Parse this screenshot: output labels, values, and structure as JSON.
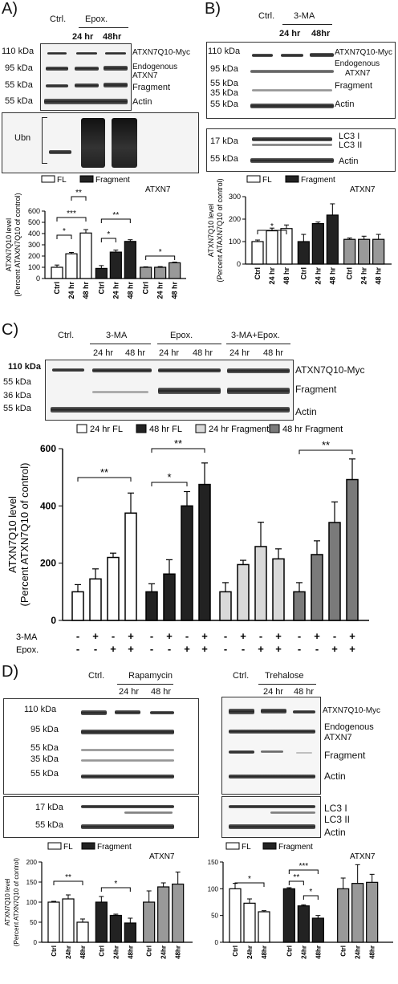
{
  "panels": {
    "A": {
      "letter": "A)",
      "header": {
        "ctrl": "Ctrl.",
        "group": "Epox.",
        "t1": "24 hr",
        "t2": "48hr"
      },
      "markers": [
        "110 kDa",
        "95 kDa",
        "55 kDa",
        "55 kDa"
      ],
      "labels": [
        "ATXN7Q10-Myc",
        "Endogenous",
        "ATXN7",
        "Fragment",
        "Actin"
      ],
      "ubn": "Ubn"
    },
    "B": {
      "letter": "B)",
      "header": {
        "ctrl": "Ctrl.",
        "group": "3-MA",
        "t1": "24 hr",
        "t2": "48hr"
      },
      "markers": [
        "110 kDa",
        "95 kDa",
        "55 kDa",
        "35 kDa",
        "55 kDa"
      ],
      "labels": [
        "ATXN7Q10-Myc",
        "Endogenous",
        "ATXN7",
        "Fragment",
        "Actin"
      ],
      "lc3_markers": [
        "17 kDa",
        "55 kDa"
      ],
      "lc3_labels": [
        "LC3 I",
        "LC3 II",
        "Actin"
      ]
    },
    "C": {
      "letter": "C)",
      "header": {
        "ctrl": "Ctrl.",
        "g1": "3-MA",
        "g2": "Epox.",
        "g3": "3-MA+Epox.",
        "t1": "24 hr",
        "t2": "48 hr"
      },
      "markers": [
        "110 kDa",
        "55 kDa",
        "36 kDa",
        "55 kDa"
      ],
      "labels": [
        "ATXN7Q10-Myc",
        "Fragment",
        "Actin"
      ],
      "row_3ma": "3-MA",
      "row_epox": "Epox.",
      "signs_3ma": [
        "-",
        "+",
        "-",
        "+",
        "-",
        "+",
        "-",
        "+",
        "-",
        "+",
        "-",
        "+",
        "-",
        "+",
        "-",
        "+"
      ],
      "signs_epox": [
        "-",
        "-",
        "+",
        "+",
        "-",
        "-",
        "+",
        "+",
        "-",
        "-",
        "+",
        "+",
        "-",
        "-",
        "+",
        "+"
      ]
    },
    "D": {
      "letter": "D)",
      "left_header": {
        "ctrl": "Ctrl.",
        "group": "Rapamycin",
        "t1": "24 hr",
        "t2": "48 hr"
      },
      "left_markers": [
        "110 kDa",
        "95 kDa",
        "55 kDa",
        "35 kDa",
        "55 kDa"
      ],
      "left_lc3_markers": [
        "17 kDa",
        "55 kDa"
      ],
      "right_header": {
        "ctrl": "Ctrl.",
        "group": "Trehalose",
        "t1": "24 hr",
        "t2": "48 hr"
      },
      "right_labels": [
        "ATXN7Q10-Myc",
        "Endogenous",
        "ATXN7",
        "Fragment",
        "Actin"
      ],
      "right_lc3_labels": [
        "LC3 I",
        "LC3 II",
        "Actin"
      ]
    }
  },
  "chart_data": [
    {
      "id": "A",
      "type": "bar",
      "ylabel": "ATXN7Q10 level",
      "ylabel2": "(Percent ATAXN7Q10 of control)",
      "ylim": [
        0,
        600
      ],
      "yticks": [
        0,
        100,
        200,
        300,
        400,
        500,
        600
      ],
      "categories": [
        "Ctrl",
        "24 hr",
        "48 hr"
      ],
      "legend": [
        "FL",
        "Fragment",
        "Endogenous",
        "ATXN7"
      ],
      "series": [
        {
          "name": "FL",
          "color": "#ffffff",
          "values": [
            100,
            220,
            405
          ],
          "err": [
            20,
            12,
            30
          ]
        },
        {
          "name": "Fragment",
          "color": "#222222",
          "values": [
            90,
            235,
            330
          ],
          "err": [
            25,
            18,
            15
          ]
        },
        {
          "name": "Endogenous ATXN7",
          "color": "#999999",
          "values": [
            100,
            100,
            140
          ],
          "err": [
            4,
            6,
            6
          ]
        }
      ],
      "annotations": [
        "**",
        "***",
        "*",
        "**",
        "*",
        "*"
      ]
    },
    {
      "id": "B",
      "type": "bar",
      "ylabel": "ATXN7Q10 level",
      "ylabel2": "(Percent ATAXN7Q10 of control)",
      "ylim": [
        0,
        300
      ],
      "yticks": [
        0,
        100,
        200,
        300
      ],
      "categories": [
        "Ctrl",
        "24 hr",
        "48 hr"
      ],
      "legend": [
        "FL",
        "Fragment",
        "Endogenous",
        "ATXN7"
      ],
      "series": [
        {
          "name": "FL",
          "color": "#ffffff",
          "values": [
            100,
            148,
            158
          ],
          "err": [
            7,
            12,
            16
          ]
        },
        {
          "name": "Fragment",
          "color": "#222222",
          "values": [
            100,
            180,
            218
          ],
          "err": [
            32,
            7,
            50
          ]
        },
        {
          "name": "Endogenous ATXN7",
          "color": "#999999",
          "values": [
            110,
            110,
            110
          ],
          "err": [
            6,
            14,
            22
          ]
        }
      ],
      "annotations": [
        "*"
      ]
    },
    {
      "id": "C",
      "type": "bar",
      "ylabel": "ATXN7Q10 level",
      "ylabel2": "(Percent ATXN7Q10 of control)",
      "ylim": [
        0,
        600
      ],
      "yticks": [
        0,
        200,
        400,
        600
      ],
      "legend": [
        "24 hr FL",
        "48 hr FL",
        "24 hr Fragment",
        "48 hr Fragment"
      ],
      "series": [
        {
          "name": "24 hr FL",
          "color": "#ffffff",
          "values": [
            100,
            145,
            220,
            375
          ],
          "err": [
            25,
            35,
            15,
            70
          ]
        },
        {
          "name": "48 hr FL",
          "color": "#222222",
          "values": [
            100,
            162,
            400,
            475
          ],
          "err": [
            28,
            50,
            50,
            75
          ]
        },
        {
          "name": "24 hr Fragment",
          "color": "#d9d9d9",
          "values": [
            100,
            195,
            258,
            215
          ],
          "err": [
            32,
            15,
            85,
            35
          ]
        },
        {
          "name": "48 hr Fragment",
          "color": "#7a7a7a",
          "values": [
            100,
            230,
            342,
            492
          ],
          "err": [
            32,
            48,
            72,
            72
          ]
        }
      ],
      "annotations": [
        "**",
        "*",
        "**",
        "**"
      ]
    },
    {
      "id": "D-left",
      "type": "bar",
      "ylabel": "ATXN7Q10 level",
      "ylabel2": "(Percent ATXN7Q10 of control)",
      "ylim": [
        0,
        200
      ],
      "yticks": [
        0,
        50,
        100,
        150,
        200
      ],
      "categories": [
        "Ctrl",
        "24hr",
        "48hr"
      ],
      "legend": [
        "FL",
        "Fragment",
        "Endogenous",
        "ATXN7"
      ],
      "series": [
        {
          "name": "FL",
          "color": "#ffffff",
          "values": [
            100,
            108,
            50
          ],
          "err": [
            2,
            10,
            8
          ]
        },
        {
          "name": "Fragment",
          "color": "#222222",
          "values": [
            100,
            67,
            48
          ],
          "err": [
            14,
            3,
            12
          ]
        },
        {
          "name": "Endogenous ATXN7",
          "color": "#999999",
          "values": [
            100,
            138,
            145
          ],
          "err": [
            28,
            10,
            30
          ]
        }
      ],
      "annotations": [
        "**",
        "*"
      ]
    },
    {
      "id": "D-right",
      "type": "bar",
      "ylim": [
        0,
        150
      ],
      "yticks": [
        0,
        50,
        100,
        150
      ],
      "categories": [
        "Ctrl",
        "24hr",
        "48hr"
      ],
      "legend": [
        "FL",
        "Fragment",
        "Endogenous",
        "ATXN7"
      ],
      "series": [
        {
          "name": "FL",
          "color": "#ffffff",
          "values": [
            100,
            73,
            57
          ],
          "err": [
            10,
            8,
            2
          ]
        },
        {
          "name": "Fragment",
          "color": "#222222",
          "values": [
            100,
            68,
            45
          ],
          "err": [
            2,
            2,
            5
          ]
        },
        {
          "name": "Endogenous ATXN7",
          "color": "#999999",
          "values": [
            100,
            110,
            112
          ],
          "err": [
            20,
            35,
            15
          ]
        }
      ],
      "annotations": [
        "*",
        "***",
        "**",
        "*"
      ]
    }
  ]
}
